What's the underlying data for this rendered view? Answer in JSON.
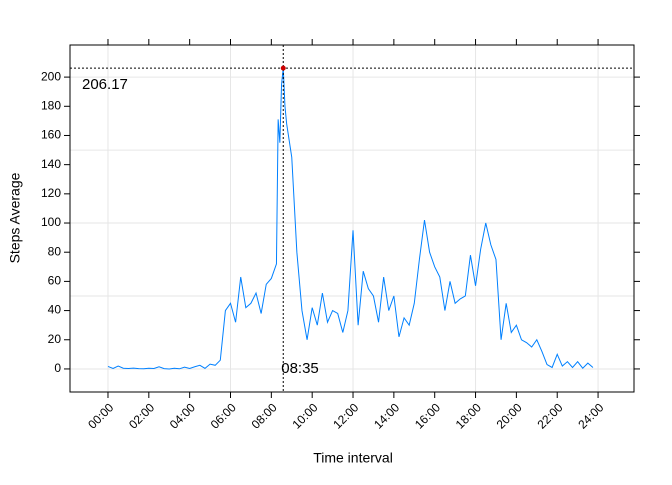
{
  "chart_data": {
    "type": "line",
    "xlabel": "Time interval",
    "ylabel": "Steps Average",
    "x": [
      0,
      0.25,
      0.5,
      0.75,
      1,
      1.25,
      1.5,
      1.75,
      2,
      2.25,
      2.5,
      2.75,
      3,
      3.25,
      3.5,
      3.75,
      4,
      4.25,
      4.5,
      4.75,
      5,
      5.25,
      5.5,
      5.75,
      6,
      6.25,
      6.5,
      6.75,
      7,
      7.25,
      7.5,
      7.75,
      8,
      8.25,
      8.333,
      8.417,
      8.5,
      8.583,
      8.667,
      8.75,
      9,
      9.25,
      9.5,
      9.75,
      10,
      10.25,
      10.5,
      10.75,
      11,
      11.25,
      11.5,
      11.75,
      12,
      12.25,
      12.5,
      12.75,
      13,
      13.25,
      13.5,
      13.75,
      14,
      14.25,
      14.5,
      14.75,
      15,
      15.25,
      15.5,
      15.75,
      16,
      16.25,
      16.5,
      16.75,
      17,
      17.25,
      17.5,
      17.75,
      18,
      18.25,
      18.5,
      18.75,
      19,
      19.25,
      19.5,
      19.75,
      20,
      20.25,
      20.5,
      20.75,
      21,
      21.25,
      21.5,
      21.75,
      22,
      22.25,
      22.5,
      22.75,
      23,
      23.25,
      23.5,
      23.75
    ],
    "series": [
      {
        "color": "#0080ff",
        "values": [
          1.7,
          0.3,
          2,
          0.5,
          0.3,
          0.6,
          0.2,
          0.1,
          0.5,
          0.3,
          1.5,
          0.2,
          0,
          0.5,
          0.1,
          1.2,
          0.3,
          1.5,
          2.5,
          0.4,
          3.3,
          2.5,
          6,
          40,
          45,
          32,
          63,
          42,
          45,
          52,
          38,
          58,
          62,
          72,
          171,
          155,
          195,
          206.17,
          180,
          168,
          145,
          80,
          40,
          20,
          42,
          30,
          52,
          32,
          40,
          38,
          25,
          40,
          95,
          30,
          67,
          55,
          50,
          32,
          63,
          40,
          50,
          22,
          35,
          30,
          45,
          75,
          102,
          80,
          70,
          63,
          40,
          60,
          45,
          48,
          50,
          78,
          57,
          82,
          100,
          85,
          75,
          20,
          45,
          25,
          30,
          20,
          18,
          15,
          20,
          12,
          3,
          1,
          10,
          2,
          5,
          1,
          5,
          0.5,
          4,
          1
        ]
      }
    ],
    "xlim": [
      -1.86,
      25.76
    ],
    "ylim": [
      -15.8,
      222
    ],
    "xticks": [
      {
        "value": 0,
        "label": "00:00"
      },
      {
        "value": 2,
        "label": "02:00"
      },
      {
        "value": 4,
        "label": "04:00"
      },
      {
        "value": 6,
        "label": "06:00"
      },
      {
        "value": 8,
        "label": "08:00"
      },
      {
        "value": 10,
        "label": "10:00"
      },
      {
        "value": 12,
        "label": "12:00"
      },
      {
        "value": 14,
        "label": "14:00"
      },
      {
        "value": 16,
        "label": "16:00"
      },
      {
        "value": 18,
        "label": "18:00"
      },
      {
        "value": 20,
        "label": "20:00"
      },
      {
        "value": 22,
        "label": "22:00"
      },
      {
        "value": 24,
        "label": "24:00"
      }
    ],
    "yticks": [
      0,
      20,
      40,
      60,
      80,
      100,
      120,
      140,
      160,
      180,
      200
    ],
    "grid_x": [
      0,
      6,
      12,
      18,
      24
    ],
    "grid_y": [
      0,
      50,
      100,
      150,
      200
    ],
    "max_point": {
      "x": 8.583,
      "y": 206.17,
      "color": "#cc0000"
    },
    "annotations": {
      "max_value": "206.17",
      "max_time": "08:35"
    }
  }
}
